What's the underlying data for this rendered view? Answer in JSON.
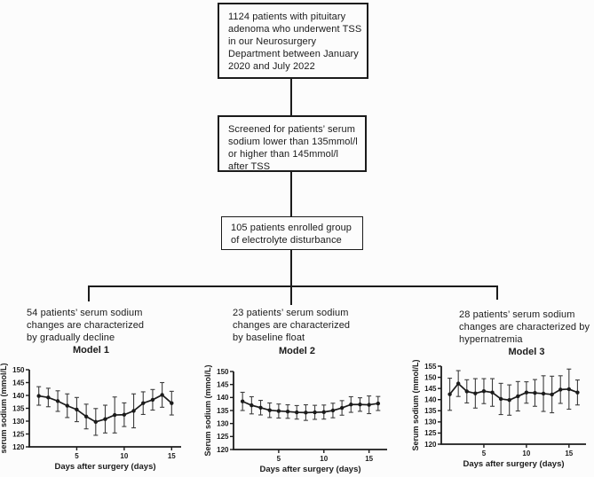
{
  "figure": {
    "background": "#fcfcfc",
    "line_color": "#1b1b1b"
  },
  "flowchart": {
    "boxes": [
      {
        "text": "1124 patients with pituitary adenoma who underwent TSS in our Neurosurgery Department between January 2020 and July 2022"
      },
      {
        "text": "Screened for patients’ serum sodium lower than 135mmol/l or higher than 145mmol/l after TSS"
      },
      {
        "text": "105 patients enrolled group of electrolyte disturbance"
      }
    ],
    "branches": [
      {
        "text": "54 patients’ serum sodium changes are characterized by gradually decline",
        "model_label": "Model 1"
      },
      {
        "text": "23 patients’ serum sodium changes are characterized by baseline float",
        "model_label": "Model 2"
      },
      {
        "text": "28 patients’ serum sodium changes are characterized by hypernatremia",
        "model_label": "Model 3"
      }
    ]
  },
  "chart_data": [
    {
      "type": "line",
      "title": "Model 1",
      "xlabel": "Days after surgery (days)",
      "ylabel": "serum sodium (mmol/L)",
      "ylim": [
        120,
        150
      ],
      "ytick_step": 5,
      "xticks": [
        5,
        10,
        15
      ],
      "grid": false,
      "legend": "none",
      "x": [
        1,
        2,
        3,
        4,
        5,
        6,
        7,
        8,
        9,
        10,
        11,
        12,
        13,
        14,
        15
      ],
      "values": [
        139.8,
        139.2,
        137.8,
        136.0,
        134.5,
        131.8,
        129.7,
        130.8,
        132.4,
        132.5,
        134.0,
        137.0,
        138.3,
        140.2,
        137.0
      ],
      "errors": [
        3.6,
        3.6,
        4.0,
        4.6,
        4.7,
        4.8,
        5.2,
        5.4,
        7.0,
        4.6,
        6.6,
        4.4,
        4.0,
        4.8,
        4.6
      ]
    },
    {
      "type": "line",
      "title": "Model 2",
      "xlabel": "Days after surgery (days)",
      "ylabel": "Serum sodium (mmol/L)",
      "ylim": [
        120,
        150
      ],
      "ytick_step": 5,
      "xticks": [
        5,
        10,
        15
      ],
      "grid": false,
      "legend": "none",
      "x": [
        1,
        2,
        3,
        4,
        5,
        6,
        7,
        8,
        9,
        10,
        11,
        12,
        13,
        14,
        15,
        16
      ],
      "values": [
        138.5,
        137.0,
        136.1,
        135.1,
        134.8,
        134.6,
        134.3,
        134.2,
        134.3,
        134.4,
        135.0,
        136.0,
        137.3,
        137.3,
        137.2,
        137.7
      ],
      "errors": [
        3.5,
        3.3,
        2.8,
        2.8,
        2.7,
        2.6,
        2.6,
        3.0,
        2.7,
        2.7,
        2.8,
        2.8,
        3.0,
        2.6,
        3.4,
        2.7
      ]
    },
    {
      "type": "line",
      "title": "Model 3",
      "xlabel": "Days after surgery (days)",
      "ylabel": "Serum sodium (mmol/L)",
      "ylim": [
        120,
        155
      ],
      "ytick_step": 5,
      "xticks": [
        5,
        10,
        15
      ],
      "grid": false,
      "legend": "none",
      "x": [
        1,
        2,
        3,
        4,
        5,
        6,
        7,
        8,
        9,
        10,
        11,
        12,
        13,
        14,
        15,
        16
      ],
      "values": [
        142.4,
        147.2,
        143.7,
        142.8,
        143.8,
        143.2,
        140.3,
        139.8,
        141.5,
        143.2,
        143.0,
        142.7,
        142.3,
        144.5,
        144.7,
        143.2
      ],
      "errors": [
        7.2,
        5.8,
        5.2,
        6.6,
        5.6,
        6.2,
        7.0,
        6.8,
        6.6,
        4.8,
        6.0,
        8.0,
        8.2,
        6.2,
        9.0,
        5.6
      ]
    }
  ]
}
